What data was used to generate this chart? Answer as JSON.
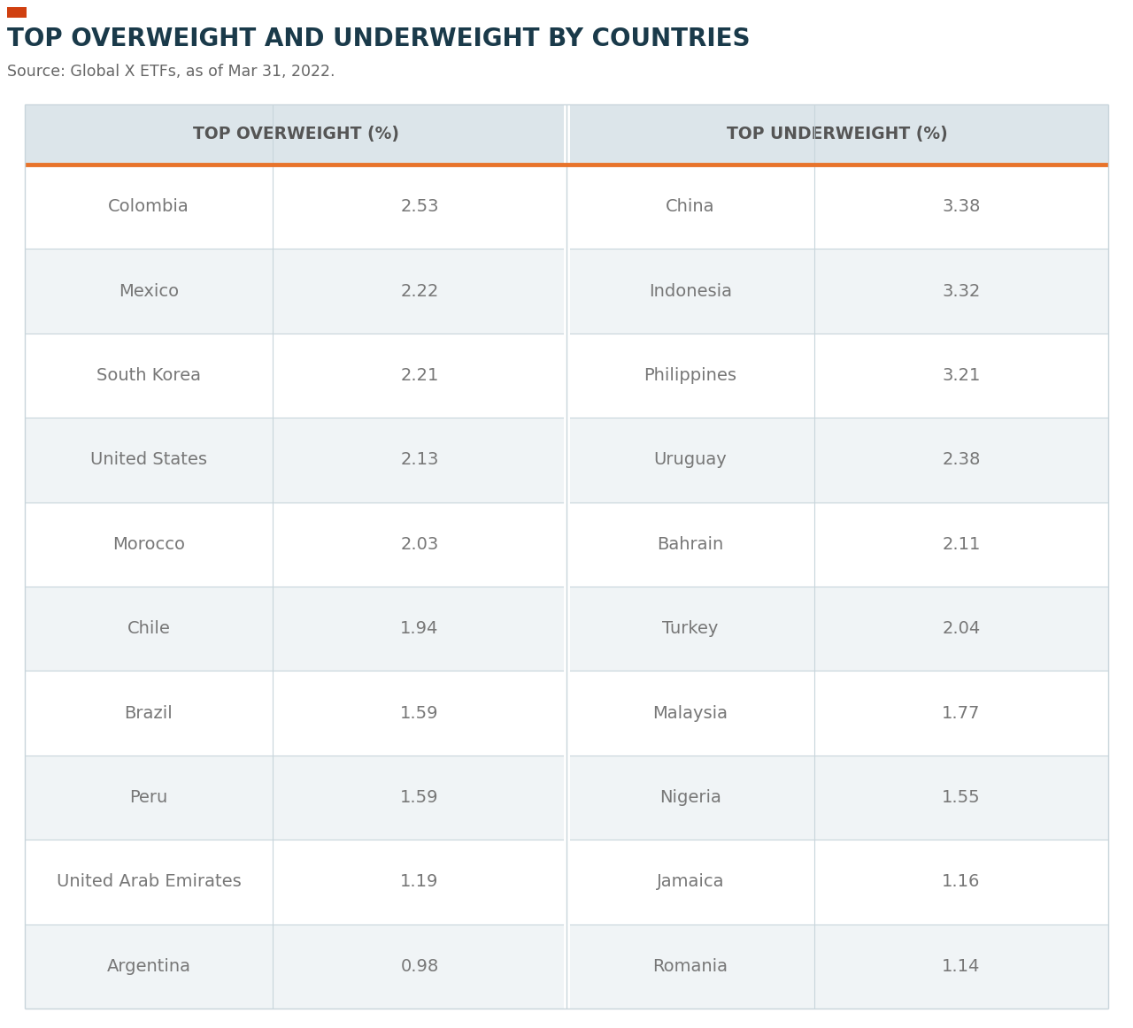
{
  "title": "TOP OVERWEIGHT AND UNDERWEIGHT BY COUNTRIES",
  "source": "Source: Global X ETFs, as of Mar 31, 2022.",
  "header_left": "TOP OVERWEIGHT (%)",
  "header_right": "TOP UNDERWEIGHT (%)",
  "overweight": [
    [
      "Colombia",
      "2.53"
    ],
    [
      "Mexico",
      "2.22"
    ],
    [
      "South Korea",
      "2.21"
    ],
    [
      "United States",
      "2.13"
    ],
    [
      "Morocco",
      "2.03"
    ],
    [
      "Chile",
      "1.94"
    ],
    [
      "Brazil",
      "1.59"
    ],
    [
      "Peru",
      "1.59"
    ],
    [
      "United Arab Emirates",
      "1.19"
    ],
    [
      "Argentina",
      "0.98"
    ]
  ],
  "underweight": [
    [
      "China",
      "3.38"
    ],
    [
      "Indonesia",
      "3.32"
    ],
    [
      "Philippines",
      "3.21"
    ],
    [
      "Uruguay",
      "2.38"
    ],
    [
      "Bahrain",
      "2.11"
    ],
    [
      "Turkey",
      "2.04"
    ],
    [
      "Malaysia",
      "1.77"
    ],
    [
      "Nigeria",
      "1.55"
    ],
    [
      "Jamaica",
      "1.16"
    ],
    [
      "Romania",
      "1.14"
    ]
  ],
  "title_color": "#1a3a4a",
  "source_color": "#666666",
  "header_bg_color": "#dce5ea",
  "header_text_color": "#555555",
  "row_odd_color": "#f0f4f6",
  "row_even_color": "#ffffff",
  "cell_text_color": "#777777",
  "orange_line_color": "#e8732a",
  "divider_color": "#c8d5db",
  "orange_rect_color": "#d04010",
  "table_border_color": "#c8d5db",
  "mid_divider_color": "#c8d5db"
}
